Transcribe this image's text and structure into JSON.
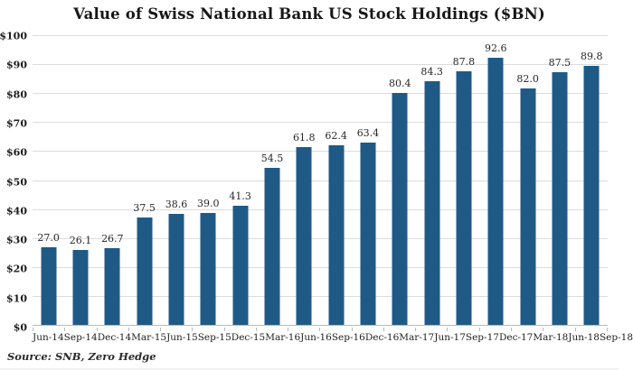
{
  "chart_data": {
    "type": "bar",
    "title": "Value of Swiss National Bank US Stock Holdings ($BN)",
    "categories": [
      "Jun-14",
      "Sep-14",
      "Dec-14",
      "Mar-15",
      "Jun-15",
      "Sep-15",
      "Dec-15",
      "Mar-16",
      "Jun-16",
      "Sep-16",
      "Dec-16",
      "Mar-17",
      "Jun-17",
      "Sep-17",
      "Dec-17",
      "Mar-18",
      "Jun-18",
      "Sep-18"
    ],
    "values": [
      27.0,
      26.1,
      26.7,
      37.5,
      38.6,
      39.0,
      41.3,
      54.5,
      61.8,
      62.4,
      63.4,
      80.4,
      84.3,
      87.8,
      92.6,
      82.0,
      87.5,
      89.8
    ],
    "value_labels": [
      "27.0",
      "26.1",
      "26.7",
      "37.5",
      "38.6",
      "39.0",
      "41.3",
      "54.5",
      "61.8",
      "62.4",
      "63.4",
      "80.4",
      "84.3",
      "87.8",
      "92.6",
      "82.0",
      "87.5",
      "89.8"
    ],
    "xlabel": "",
    "ylabel": "",
    "ylim": [
      0,
      100
    ],
    "y_tick_step": 10,
    "y_tick_labels": [
      "$0",
      "$10",
      "$20",
      "$30",
      "$40",
      "$50",
      "$60",
      "$70",
      "$80",
      "$90",
      "$100"
    ],
    "grid": "horizontal",
    "legend": "none",
    "bar_color": "#1f5a87"
  },
  "source_note": "Source: SNB, Zero Hedge",
  "colors": {
    "background": "#ffffff",
    "gridline": "#dcdcdc",
    "axis_line": "#b9b9b9",
    "text": "#1c1c1c"
  }
}
